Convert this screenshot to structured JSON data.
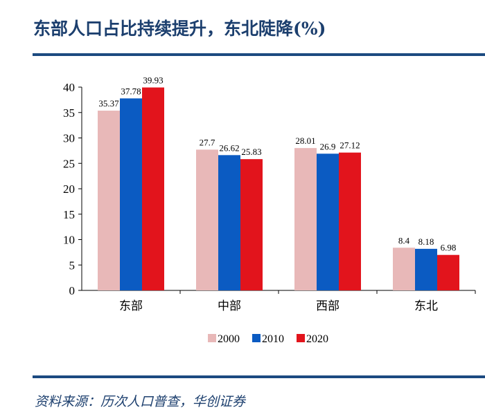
{
  "title": "东部人口占比持续提升，东北陡降(%)",
  "source": "资料来源：历次人口普查，华创证券",
  "chart_data": {
    "type": "bar",
    "title": "东部人口占比持续提升，东北陡降(%)",
    "categories": [
      "东部",
      "中部",
      "西部",
      "东北"
    ],
    "series": [
      {
        "name": "2000",
        "color": "#e8b8b8",
        "values": [
          35.37,
          27.7,
          28.01,
          8.4
        ],
        "labels": [
          "35.37",
          "27.7",
          "28.01",
          "8.4"
        ]
      },
      {
        "name": "2010",
        "color": "#0b5bc2",
        "values": [
          37.78,
          26.62,
          26.9,
          8.18
        ],
        "labels": [
          "37.78",
          "26.62",
          "26.9",
          "8.18"
        ]
      },
      {
        "name": "2020",
        "color": "#e2141c",
        "values": [
          39.93,
          25.83,
          27.12,
          6.98
        ],
        "labels": [
          "39.93",
          "25.83",
          "27.12",
          "6.98"
        ]
      }
    ],
    "ylim": [
      0,
      40
    ],
    "yticks": [
      "0",
      "5",
      "10",
      "15",
      "20",
      "25",
      "30",
      "35",
      "40"
    ],
    "grid": false,
    "legend": "bottom"
  }
}
